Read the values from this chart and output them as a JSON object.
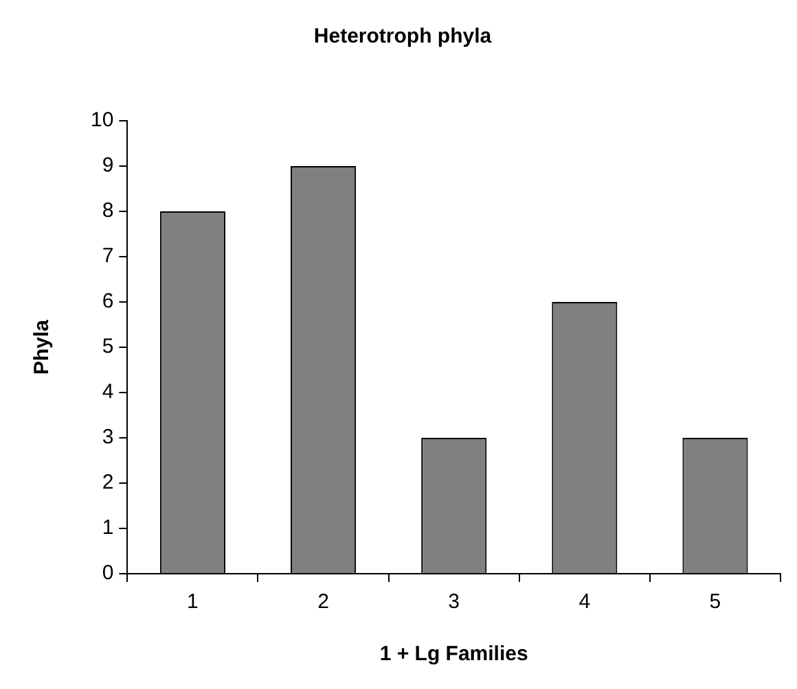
{
  "chart_data": {
    "type": "bar",
    "title": "Heterotroph phyla",
    "xlabel": "1 + Lg Families",
    "ylabel": "Phyla",
    "categories": [
      "1",
      "2",
      "3",
      "4",
      "5"
    ],
    "values": [
      8,
      9,
      3,
      6,
      3
    ],
    "color": "#808080",
    "ylim": [
      0,
      10
    ],
    "yticks": [
      0,
      1,
      2,
      3,
      4,
      5,
      6,
      7,
      8,
      9,
      10
    ],
    "grid": false,
    "legend": false
  }
}
